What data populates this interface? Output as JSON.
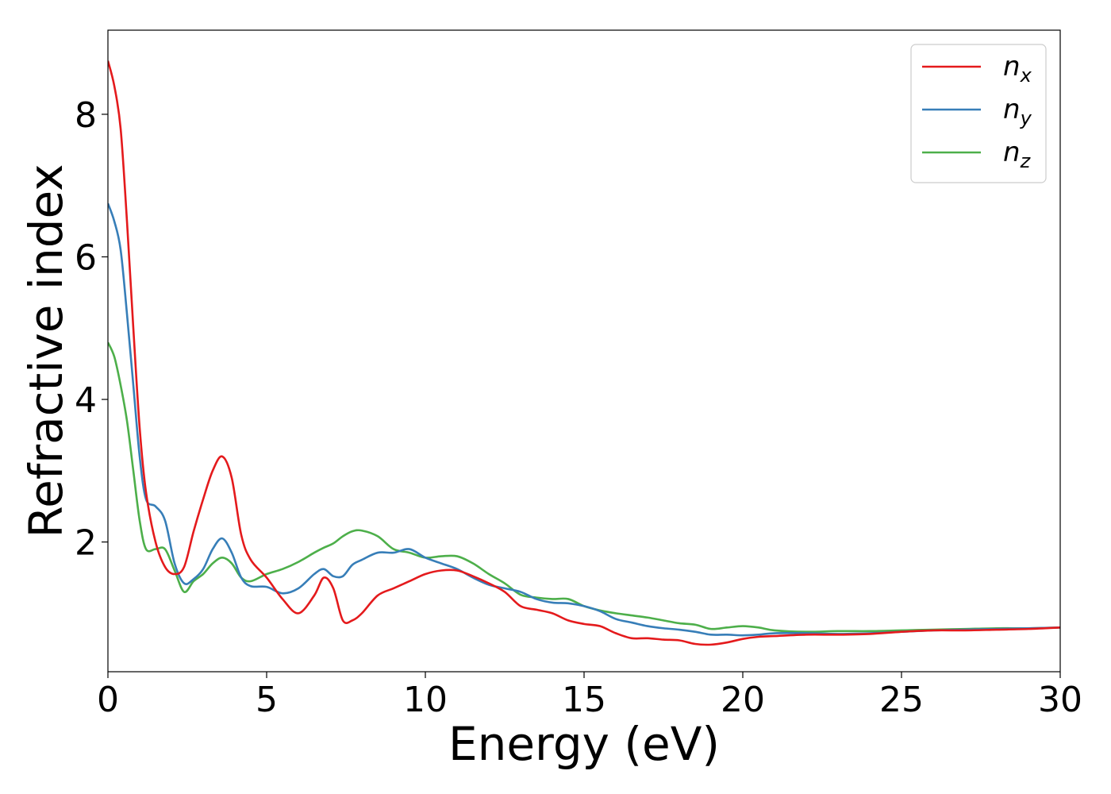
{
  "chart_data": {
    "type": "line",
    "xlabel": "Energy (eV)",
    "ylabel": "Refractive index",
    "xlim": [
      0,
      30
    ],
    "ylim": [
      0.18,
      9.18
    ],
    "xticks": [
      0,
      5,
      10,
      15,
      20,
      25,
      30
    ],
    "yticks": [
      2,
      4,
      6,
      8
    ],
    "grid": false,
    "legend": "top-right",
    "series": [
      {
        "name": "n_x",
        "label_base": "n",
        "label_sub": "x",
        "color": "#e41a1c",
        "x": [
          0,
          0.2,
          0.4,
          0.6,
          0.8,
          1.0,
          1.2,
          1.5,
          1.8,
          2.1,
          2.4,
          2.7,
          3.0,
          3.3,
          3.6,
          3.9,
          4.2,
          4.5,
          5.0,
          5.5,
          6.0,
          6.5,
          6.8,
          7.1,
          7.4,
          7.7,
          8.0,
          8.5,
          9.0,
          9.5,
          10.0,
          10.5,
          11.0,
          11.5,
          12.0,
          12.5,
          13.0,
          13.5,
          14.0,
          14.5,
          15.0,
          15.5,
          16.0,
          16.5,
          17.0,
          17.5,
          18.0,
          18.5,
          19.0,
          19.5,
          20.0,
          20.5,
          21.0,
          22.0,
          23.0,
          24.0,
          25.0,
          26.0,
          27.0,
          28.0,
          29.0,
          30.0
        ],
        "y": [
          8.75,
          8.4,
          7.8,
          6.5,
          5.0,
          3.6,
          2.7,
          2.0,
          1.65,
          1.55,
          1.65,
          2.15,
          2.6,
          3.0,
          3.2,
          2.9,
          2.1,
          1.75,
          1.5,
          1.2,
          1.0,
          1.25,
          1.5,
          1.35,
          0.9,
          0.9,
          1.0,
          1.25,
          1.35,
          1.45,
          1.55,
          1.6,
          1.6,
          1.52,
          1.42,
          1.3,
          1.1,
          1.05,
          1.0,
          0.9,
          0.85,
          0.82,
          0.72,
          0.65,
          0.65,
          0.63,
          0.62,
          0.57,
          0.56,
          0.59,
          0.64,
          0.67,
          0.68,
          0.7,
          0.7,
          0.71,
          0.74,
          0.76,
          0.76,
          0.77,
          0.78,
          0.8
        ]
      },
      {
        "name": "n_y",
        "label_base": "n",
        "label_sub": "y",
        "color": "#377eb8",
        "x": [
          0,
          0.2,
          0.4,
          0.6,
          0.8,
          1.0,
          1.2,
          1.5,
          1.8,
          2.1,
          2.4,
          2.7,
          3.0,
          3.3,
          3.6,
          3.9,
          4.2,
          4.5,
          5.0,
          5.5,
          6.0,
          6.5,
          6.8,
          7.1,
          7.4,
          7.7,
          8.0,
          8.5,
          9.0,
          9.5,
          10.0,
          10.5,
          11.0,
          11.5,
          12.0,
          12.5,
          13.0,
          13.5,
          14.0,
          14.5,
          15.0,
          15.5,
          16.0,
          16.5,
          17.0,
          17.5,
          18.0,
          18.5,
          19.0,
          19.5,
          20.0,
          20.5,
          21.0,
          22.0,
          23.0,
          24.0,
          25.0,
          26.0,
          27.0,
          28.0,
          29.0,
          30.0
        ],
        "y": [
          6.75,
          6.5,
          6.1,
          5.2,
          4.2,
          3.2,
          2.6,
          2.5,
          2.3,
          1.7,
          1.42,
          1.48,
          1.62,
          1.9,
          2.05,
          1.85,
          1.5,
          1.38,
          1.37,
          1.28,
          1.35,
          1.55,
          1.62,
          1.52,
          1.52,
          1.68,
          1.75,
          1.85,
          1.85,
          1.9,
          1.78,
          1.7,
          1.62,
          1.5,
          1.4,
          1.35,
          1.3,
          1.2,
          1.15,
          1.14,
          1.1,
          1.03,
          0.92,
          0.87,
          0.82,
          0.79,
          0.77,
          0.74,
          0.7,
          0.7,
          0.69,
          0.7,
          0.72,
          0.72,
          0.71,
          0.72,
          0.74,
          0.76,
          0.77,
          0.78,
          0.79,
          0.8
        ]
      },
      {
        "name": "n_z",
        "label_base": "n",
        "label_sub": "z",
        "color": "#4daf4a",
        "x": [
          0,
          0.2,
          0.4,
          0.6,
          0.8,
          1.0,
          1.2,
          1.5,
          1.8,
          2.1,
          2.4,
          2.7,
          3.0,
          3.3,
          3.6,
          3.9,
          4.2,
          4.5,
          5.0,
          5.5,
          6.0,
          6.5,
          6.8,
          7.1,
          7.4,
          7.7,
          8.0,
          8.5,
          9.0,
          9.5,
          10.0,
          10.5,
          11.0,
          11.5,
          12.0,
          12.5,
          13.0,
          13.5,
          14.0,
          14.5,
          15.0,
          15.5,
          16.0,
          16.5,
          17.0,
          17.5,
          18.0,
          18.5,
          19.0,
          19.5,
          20.0,
          20.5,
          21.0,
          22.0,
          23.0,
          24.0,
          25.0,
          26.0,
          27.0,
          28.0,
          29.0,
          30.0
        ],
        "y": [
          4.8,
          4.6,
          4.2,
          3.7,
          3.0,
          2.3,
          1.9,
          1.9,
          1.9,
          1.6,
          1.3,
          1.45,
          1.55,
          1.7,
          1.78,
          1.7,
          1.5,
          1.45,
          1.55,
          1.62,
          1.72,
          1.85,
          1.92,
          1.98,
          2.08,
          2.15,
          2.16,
          2.08,
          1.9,
          1.85,
          1.78,
          1.8,
          1.8,
          1.7,
          1.55,
          1.42,
          1.26,
          1.22,
          1.2,
          1.2,
          1.1,
          1.04,
          1.0,
          0.97,
          0.94,
          0.9,
          0.86,
          0.84,
          0.78,
          0.8,
          0.82,
          0.8,
          0.76,
          0.74,
          0.75,
          0.75,
          0.76,
          0.77,
          0.78,
          0.79,
          0.79,
          0.8
        ]
      }
    ]
  }
}
